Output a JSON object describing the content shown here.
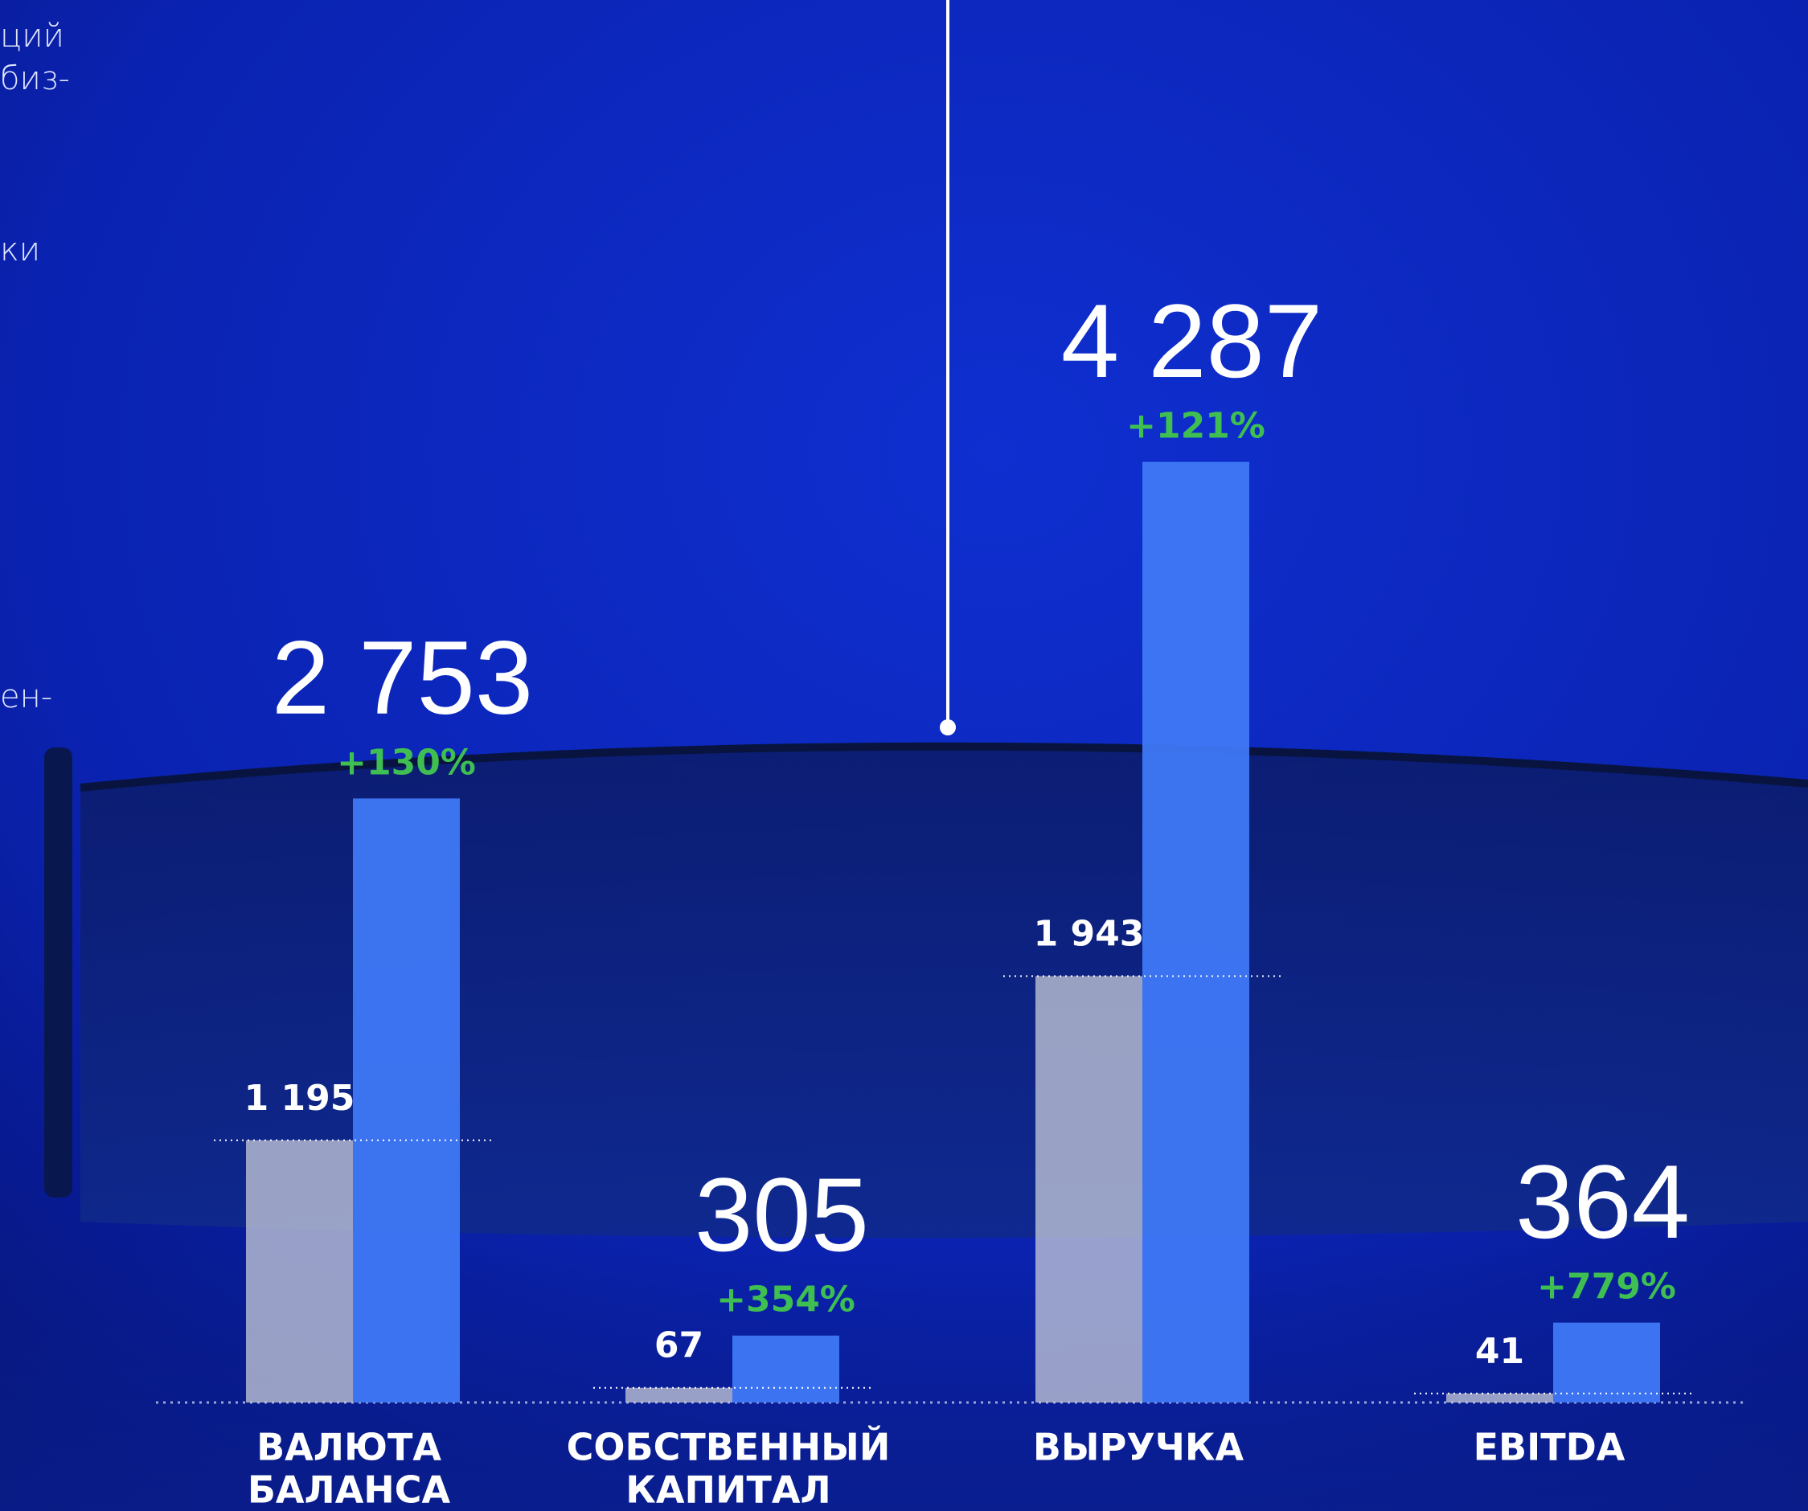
{
  "side_text": [
    "ций",
    "биз-",
    "ки",
    "ен-"
  ],
  "chart_data": {
    "type": "bar",
    "categories": [
      [
        "ВАЛЮТА",
        "БАЛАНСА"
      ],
      [
        "СОБСТВЕННЫЙ",
        "КАПИТАЛ"
      ],
      [
        "ВЫРУЧКА"
      ],
      [
        "EBITDA"
      ]
    ],
    "series": [
      {
        "color": "#c8ccd8",
        "values": [
          1195,
          67,
          1943,
          41
        ],
        "value_labels": [
          "1 195",
          "67",
          "1 943",
          "41"
        ]
      },
      {
        "color": "#3f78f5",
        "values": [
          2753,
          305,
          4287,
          364
        ],
        "value_labels": [
          "2 753",
          "305",
          "4 287",
          "364"
        ]
      }
    ],
    "growth_labels": [
      "+130%",
      "+354%",
      "+121%",
      "+779%"
    ]
  }
}
